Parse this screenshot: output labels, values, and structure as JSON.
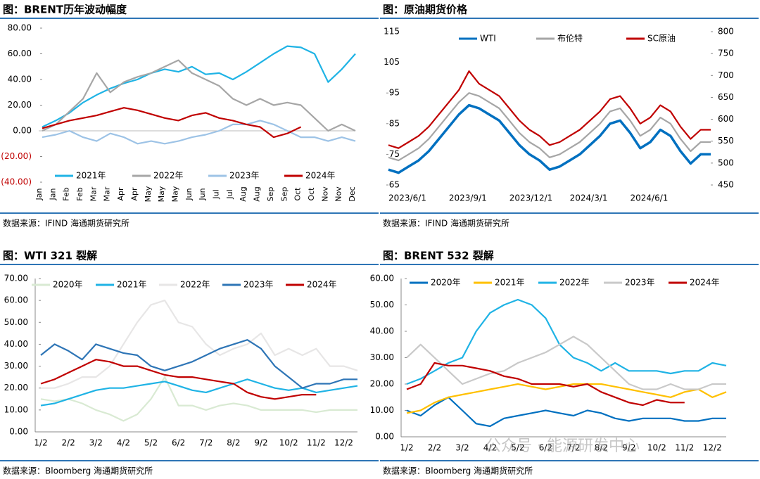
{
  "chart_data": [
    {
      "type": "line",
      "title": "图：BRENT历年波动幅度",
      "source": "数据来源：IFIND   海通期货研究所",
      "categories": [
        "Jan",
        "Jan",
        "Feb",
        "Feb",
        "Mar",
        "Mar",
        "Apr",
        "Apr",
        "May",
        "May",
        "May",
        "Jun",
        "Jun",
        "Jul",
        "Jul",
        "Aug",
        "Aug",
        "Sep",
        "Sep",
        "Oct",
        "Oct",
        "Nov",
        "Nov",
        "Dec"
      ],
      "ylim": [
        -40,
        80
      ],
      "yticks": [
        {
          "value": 80,
          "label": "80.00"
        },
        {
          "value": 60,
          "label": "60.00"
        },
        {
          "value": 40,
          "label": "40.00"
        },
        {
          "value": 20,
          "label": "20.00"
        },
        {
          "value": 0,
          "label": "0.00"
        },
        {
          "value": -20,
          "label": "(20.00)"
        },
        {
          "value": -40,
          "label": "(40.00)"
        }
      ],
      "series": [
        {
          "name": "2021年",
          "color": "#1fb3e5",
          "values": [
            3,
            8,
            14,
            22,
            28,
            33,
            37,
            40,
            45,
            48,
            46,
            50,
            44,
            45,
            40,
            46,
            53,
            60,
            66,
            65,
            60,
            38,
            48,
            60
          ]
        },
        {
          "name": "2022年",
          "color": "#a6a6a6",
          "values": [
            0,
            5,
            15,
            25,
            45,
            30,
            38,
            42,
            45,
            50,
            55,
            45,
            40,
            35,
            25,
            20,
            25,
            20,
            22,
            20,
            10,
            0,
            5,
            0
          ]
        },
        {
          "name": "2023年",
          "color": "#9dc3e6",
          "values": [
            -5,
            -3,
            0,
            -5,
            -8,
            -2,
            -5,
            -10,
            -8,
            -10,
            -8,
            -5,
            -3,
            0,
            5,
            5,
            8,
            5,
            0,
            -5,
            -5,
            -8,
            -5,
            -8
          ]
        },
        {
          "name": "2024年",
          "color": "#c00000",
          "values": [
            2,
            5,
            8,
            10,
            12,
            15,
            18,
            16,
            13,
            10,
            8,
            12,
            14,
            10,
            8,
            5,
            3,
            -5,
            -2,
            3,
            null,
            null,
            null,
            null
          ]
        }
      ]
    },
    {
      "type": "line",
      "title": "图：原油期货价格",
      "source": "数据来源：IFIND   海通期货研究所",
      "categories": [
        "2023/6/1",
        null,
        null,
        null,
        null,
        null,
        "2023/9/1",
        null,
        null,
        null,
        null,
        null,
        "2023/12/1",
        null,
        null,
        null,
        null,
        null,
        "2024/3/1",
        null,
        null,
        null,
        null,
        null,
        "2024/6/1",
        null,
        null,
        null,
        null,
        null,
        null,
        null,
        null
      ],
      "ylim": [
        65,
        115
      ],
      "yticks": [
        65,
        75,
        85,
        95,
        105,
        115
      ],
      "y2lim": [
        450,
        800
      ],
      "y2ticks": [
        450,
        500,
        550,
        600,
        650,
        700,
        750,
        800
      ],
      "series": [
        {
          "name": "WTI",
          "color": "#0070c0",
          "values": [
            70,
            69,
            71,
            73,
            76,
            80,
            84,
            88,
            91,
            90,
            88,
            86,
            82,
            78,
            75,
            73,
            70,
            71,
            73,
            75,
            78,
            81,
            85,
            86,
            82,
            77,
            79,
            83,
            81,
            76,
            72,
            75,
            75
          ]
        },
        {
          "name": "布伦特",
          "color": "#a6a6a6",
          "values": [
            74,
            73,
            75,
            77,
            80,
            84,
            88,
            92,
            95,
            94,
            92,
            90,
            86,
            82,
            79,
            77,
            74,
            75,
            77,
            79,
            82,
            85,
            89,
            90,
            86,
            81,
            83,
            87,
            85,
            80,
            76,
            79,
            79
          ]
        },
        {
          "name": "SC原油",
          "color": "#c00000",
          "axis": "y2",
          "values": [
            541,
            534,
            548,
            562,
            583,
            611,
            639,
            667,
            710,
            681,
            667,
            653,
            625,
            597,
            576,
            562,
            541,
            548,
            562,
            576,
            597,
            618,
            646,
            653,
            625,
            590,
            604,
            632,
            618,
            583,
            555,
            576,
            576
          ]
        }
      ]
    },
    {
      "type": "line",
      "title": "图：WTI 321 裂解",
      "source": "数据来源：Bloomberg   海通期货研究所",
      "categories": [
        "1/2",
        null,
        "2/2",
        null,
        "3/2",
        null,
        "4/2",
        null,
        "5/2",
        null,
        "6/2",
        null,
        "7/2",
        null,
        "8/2",
        null,
        "9/2",
        null,
        "10/2",
        null,
        "11/2",
        null,
        "12/2",
        null
      ],
      "ylim": [
        0,
        70
      ],
      "yticks": [
        {
          "value": 0,
          "label": "0.00"
        },
        {
          "value": 10,
          "label": "10.00"
        },
        {
          "value": 20,
          "label": "20.00"
        },
        {
          "value": 30,
          "label": "30.00"
        },
        {
          "value": 40,
          "label": "40.00"
        },
        {
          "value": 50,
          "label": "50.00"
        },
        {
          "value": 60,
          "label": "60.00"
        },
        {
          "value": 70,
          "label": "70.00"
        }
      ],
      "series": [
        {
          "name": "2020年",
          "color": "#d9ead3",
          "values": [
            15,
            14,
            15,
            13,
            10,
            8,
            5,
            8,
            15,
            25,
            12,
            12,
            10,
            12,
            13,
            12,
            10,
            10,
            10,
            10,
            9,
            10,
            10,
            10
          ]
        },
        {
          "name": "2021年",
          "color": "#1fb3e5",
          "values": [
            12,
            13,
            15,
            17,
            19,
            20,
            20,
            21,
            22,
            23,
            21,
            19,
            18,
            20,
            22,
            24,
            22,
            20,
            19,
            20,
            18,
            19,
            20,
            21
          ]
        },
        {
          "name": "2022年",
          "color": "#e7e6e6",
          "values": [
            20,
            20,
            22,
            25,
            25,
            30,
            40,
            50,
            58,
            60,
            50,
            48,
            40,
            35,
            38,
            40,
            45,
            35,
            38,
            35,
            38,
            30,
            30,
            28
          ]
        },
        {
          "name": "2023年",
          "color": "#2e75b6",
          "values": [
            35,
            40,
            37,
            33,
            40,
            38,
            36,
            35,
            30,
            28,
            30,
            32,
            35,
            38,
            40,
            42,
            38,
            30,
            25,
            20,
            22,
            22,
            24,
            24
          ]
        },
        {
          "name": "2024年",
          "color": "#c00000",
          "values": [
            22,
            24,
            27,
            30,
            33,
            32,
            30,
            30,
            28,
            26,
            25,
            25,
            24,
            23,
            22,
            18,
            16,
            15,
            16,
            17,
            17,
            null,
            null,
            null
          ]
        }
      ]
    },
    {
      "type": "line",
      "title": "图：BRENT 532 裂解",
      "source": "数据来源：Bloomberg   海通期货研究所",
      "categories": [
        "1/2",
        null,
        "2/2",
        null,
        "3/2",
        null,
        "4/2",
        null,
        "5/2",
        null,
        "6/2",
        null,
        "7/2",
        null,
        "8/2",
        null,
        "9/2",
        null,
        "10/2",
        null,
        "11/2",
        null,
        "12/2",
        null
      ],
      "ylim": [
        0,
        60
      ],
      "yticks": [
        {
          "value": 0,
          "label": "0.00"
        },
        {
          "value": 10,
          "label": "10.00"
        },
        {
          "value": 20,
          "label": "20.00"
        },
        {
          "value": 30,
          "label": "30.00"
        },
        {
          "value": 40,
          "label": "40.00"
        },
        {
          "value": 50,
          "label": "50.00"
        },
        {
          "value": 60,
          "label": "60.00"
        }
      ],
      "series": [
        {
          "name": "2020年",
          "color": "#0070c0",
          "values": [
            10,
            8,
            12,
            15,
            10,
            5,
            4,
            7,
            8,
            9,
            10,
            9,
            8,
            10,
            9,
            7,
            6,
            7,
            7,
            7,
            6,
            6,
            7,
            7
          ]
        },
        {
          "name": "2021年",
          "color": "#ffc000",
          "values": [
            9,
            10,
            13,
            15,
            16,
            17,
            18,
            19,
            20,
            19,
            18,
            19,
            20,
            20,
            20,
            19,
            18,
            17,
            16,
            15,
            17,
            18,
            15,
            17
          ]
        },
        {
          "name": "2022年",
          "color": "#1fb3e5",
          "values": [
            20,
            22,
            25,
            28,
            30,
            40,
            47,
            50,
            52,
            50,
            45,
            35,
            30,
            28,
            25,
            28,
            25,
            25,
            25,
            24,
            25,
            25,
            28,
            27
          ]
        },
        {
          "name": "2023年",
          "color": "#c9c9c9",
          "values": [
            30,
            35,
            30,
            25,
            20,
            22,
            24,
            25,
            28,
            30,
            32,
            35,
            38,
            35,
            30,
            25,
            20,
            18,
            18,
            20,
            18,
            18,
            20,
            20
          ]
        },
        {
          "name": "2024年",
          "color": "#c00000",
          "values": [
            18,
            20,
            28,
            27,
            27,
            26,
            25,
            23,
            22,
            20,
            20,
            20,
            19,
            20,
            17,
            15,
            13,
            12,
            14,
            13,
            13,
            null,
            null,
            null
          ]
        }
      ]
    }
  ],
  "watermark": "公众号 · 能源研发中心"
}
